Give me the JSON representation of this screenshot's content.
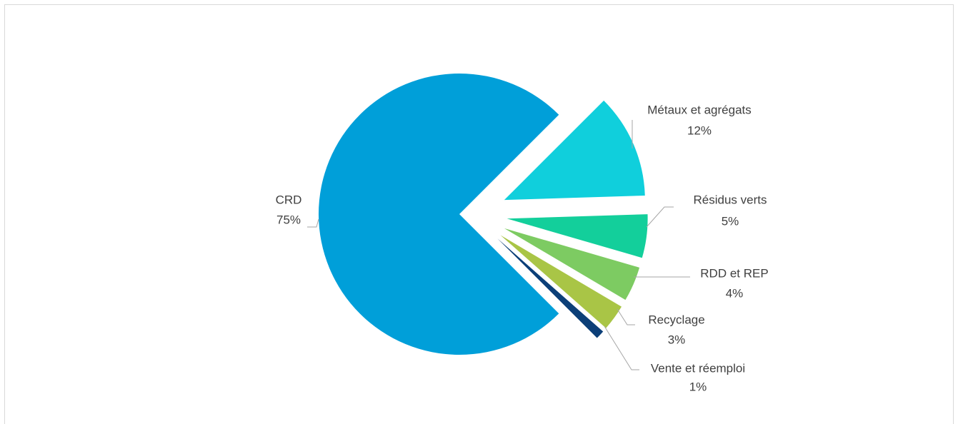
{
  "chart_data": {
    "type": "pie",
    "categories": [
      "Métaux et agrégats",
      "Résidus verts",
      "RDD et REP",
      "Recyclage",
      "Vente et réemploi",
      "CRD"
    ],
    "values": [
      12,
      5,
      4,
      3,
      1,
      75
    ],
    "value_labels": [
      "12%",
      "5%",
      "4%",
      "3%",
      "1%",
      "75%"
    ],
    "colors": [
      "#10cfdc",
      "#13cf9b",
      "#7dcb62",
      "#a9c546",
      "#0c3f78",
      "#009fd9"
    ]
  }
}
